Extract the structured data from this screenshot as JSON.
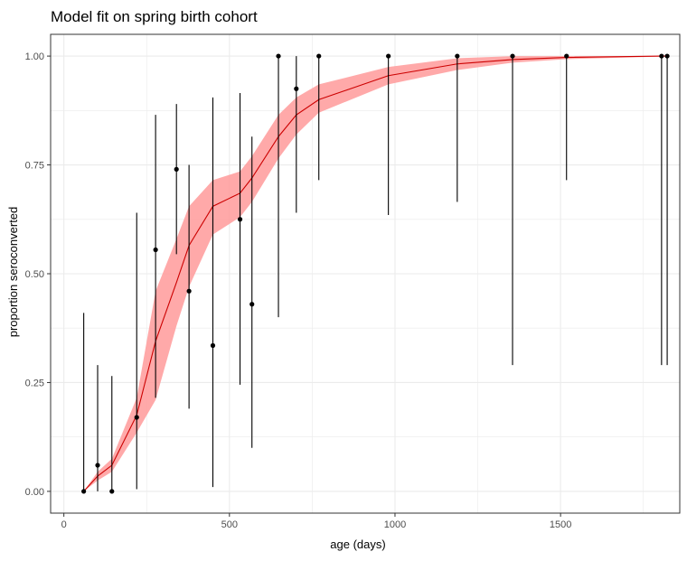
{
  "chart_data": {
    "type": "scatter",
    "title": "Model fit on spring birth cohort",
    "xlabel": "age (days)",
    "ylabel": "proportion seroconverted",
    "xlim": [
      -40,
      1860
    ],
    "ylim": [
      -0.05,
      1.05
    ],
    "x_ticks": [
      0,
      500,
      1000,
      1500
    ],
    "y_ticks": [
      0.0,
      0.25,
      0.5,
      0.75,
      1.0
    ],
    "x_tick_labels": [
      "0",
      "500",
      "1000",
      "1500"
    ],
    "y_tick_labels": [
      "0.00",
      "0.25",
      "0.50",
      "0.75",
      "1.00"
    ],
    "grid": true,
    "colors": {
      "fit_line": "#cc0000",
      "ribbon": "#ff9a9a",
      "points": "#000000",
      "grid": "#ebebeb",
      "panel_border": "#333333"
    },
    "observations": [
      {
        "x": 60,
        "y": 0.0,
        "lo": 0.0,
        "hi": 0.41
      },
      {
        "x": 102,
        "y": 0.06,
        "lo": 0.0,
        "hi": 0.29
      },
      {
        "x": 145,
        "y": 0.0,
        "lo": 0.0,
        "hi": 0.265
      },
      {
        "x": 220,
        "y": 0.17,
        "lo": 0.005,
        "hi": 0.64
      },
      {
        "x": 277,
        "y": 0.555,
        "lo": 0.215,
        "hi": 0.865
      },
      {
        "x": 340,
        "y": 0.74,
        "lo": 0.545,
        "hi": 0.89
      },
      {
        "x": 378,
        "y": 0.46,
        "lo": 0.19,
        "hi": 0.75
      },
      {
        "x": 450,
        "y": 0.335,
        "lo": 0.01,
        "hi": 0.905
      },
      {
        "x": 532,
        "y": 0.625,
        "lo": 0.245,
        "hi": 0.915
      },
      {
        "x": 568,
        "y": 0.43,
        "lo": 0.1,
        "hi": 0.815
      },
      {
        "x": 648,
        "y": 1.0,
        "lo": 0.4,
        "hi": 1.0
      },
      {
        "x": 702,
        "y": 0.925,
        "lo": 0.64,
        "hi": 1.0
      },
      {
        "x": 770,
        "y": 1.0,
        "lo": 0.715,
        "hi": 1.0
      },
      {
        "x": 980,
        "y": 1.0,
        "lo": 0.635,
        "hi": 1.0
      },
      {
        "x": 1188,
        "y": 1.0,
        "lo": 0.665,
        "hi": 1.0
      },
      {
        "x": 1355,
        "y": 1.0,
        "lo": 0.29,
        "hi": 1.0
      },
      {
        "x": 1518,
        "y": 1.0,
        "lo": 0.715,
        "hi": 1.0
      },
      {
        "x": 1805,
        "y": 1.0,
        "lo": 0.29,
        "hi": 1.0
      },
      {
        "x": 1822,
        "y": 1.0,
        "lo": 0.29,
        "hi": 1.0
      }
    ],
    "fit_curve": [
      {
        "x": 60,
        "y": 0.0,
        "lo": 0.0,
        "hi": 0.0
      },
      {
        "x": 102,
        "y": 0.035,
        "lo": 0.025,
        "hi": 0.045
      },
      {
        "x": 145,
        "y": 0.06,
        "lo": 0.045,
        "hi": 0.075
      },
      {
        "x": 220,
        "y": 0.175,
        "lo": 0.135,
        "hi": 0.215
      },
      {
        "x": 277,
        "y": 0.345,
        "lo": 0.21,
        "hi": 0.46
      },
      {
        "x": 340,
        "y": 0.48,
        "lo": 0.38,
        "hi": 0.58
      },
      {
        "x": 378,
        "y": 0.565,
        "lo": 0.47,
        "hi": 0.655
      },
      {
        "x": 450,
        "y": 0.655,
        "lo": 0.59,
        "hi": 0.715
      },
      {
        "x": 532,
        "y": 0.685,
        "lo": 0.63,
        "hi": 0.735
      },
      {
        "x": 568,
        "y": 0.72,
        "lo": 0.665,
        "hi": 0.77
      },
      {
        "x": 648,
        "y": 0.815,
        "lo": 0.765,
        "hi": 0.865
      },
      {
        "x": 702,
        "y": 0.865,
        "lo": 0.82,
        "hi": 0.905
      },
      {
        "x": 770,
        "y": 0.9,
        "lo": 0.87,
        "hi": 0.935
      },
      {
        "x": 980,
        "y": 0.955,
        "lo": 0.935,
        "hi": 0.975
      },
      {
        "x": 1188,
        "y": 0.982,
        "lo": 0.968,
        "hi": 0.995
      },
      {
        "x": 1355,
        "y": 0.992,
        "lo": 0.985,
        "hi": 1.0
      },
      {
        "x": 1518,
        "y": 0.997,
        "lo": 0.993,
        "hi": 1.0
      },
      {
        "x": 1805,
        "y": 1.0,
        "lo": 0.999,
        "hi": 1.0
      },
      {
        "x": 1822,
        "y": 1.0,
        "lo": 0.999,
        "hi": 1.0
      }
    ]
  }
}
